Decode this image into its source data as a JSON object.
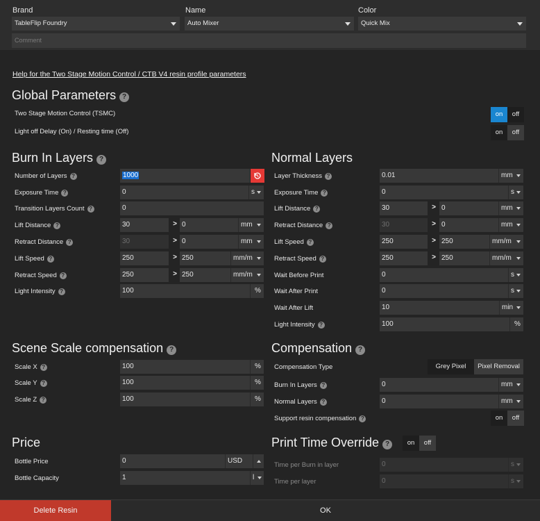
{
  "header": {
    "brand_label": "Brand",
    "brand_value": "TableFlip Foundry",
    "name_label": "Name",
    "name_value": "Auto Mixer",
    "color_label": "Color",
    "color_value": "Quick Mix",
    "comment_placeholder": "Comment"
  },
  "help_link": "Help for the Two Stage Motion Control / CTB V4 resin profile parameters",
  "global": {
    "title": "Global Parameters",
    "tsmc_label": "Two Stage Motion Control (TSMC)",
    "light_off_label": "Light off Delay (On) / Resting time (Off)",
    "on": "on",
    "off": "off"
  },
  "burn_in": {
    "title": "Burn In Layers",
    "number_of_layers_label": "Number of Layers",
    "number_of_layers_value": "1000",
    "exposure_time_label": "Exposure Time",
    "exposure_time_value": "0",
    "exposure_time_unit": "s",
    "transition_layers_label": "Transition Layers Count",
    "transition_layers_value": "0",
    "lift_distance_label": "Lift Distance",
    "lift_distance_value1": "30",
    "lift_distance_value2": "0",
    "lift_distance_unit": "mm",
    "retract_distance_label": "Retract Distance",
    "retract_distance_value1": "30",
    "retract_distance_value2": "0",
    "retract_distance_unit": "mm",
    "lift_speed_label": "Lift Speed",
    "lift_speed_value1": "250",
    "lift_speed_value2": "250",
    "lift_speed_unit": "mm/m",
    "retract_speed_label": "Retract Speed",
    "retract_speed_value1": "250",
    "retract_speed_value2": "250",
    "retract_speed_unit": "mm/m",
    "light_intensity_label": "Light Intensity",
    "light_intensity_value": "100",
    "light_intensity_unit": "%"
  },
  "normal": {
    "title": "Normal Layers",
    "layer_thickness_label": "Layer Thickness",
    "layer_thickness_value": "0.01",
    "layer_thickness_unit": "mm",
    "exposure_time_label": "Exposure Time",
    "exposure_time_value": "0",
    "exposure_time_unit": "s",
    "lift_distance_label": "Lift Distance",
    "lift_distance_value1": "30",
    "lift_distance_value2": "0",
    "lift_distance_unit": "mm",
    "retract_distance_label": "Retract Distance",
    "retract_distance_value1": "30",
    "retract_distance_value2": "0",
    "retract_distance_unit": "mm",
    "lift_speed_label": "Lift Speed",
    "lift_speed_value1": "250",
    "lift_speed_value2": "250",
    "lift_speed_unit": "mm/m",
    "retract_speed_label": "Retract Speed",
    "retract_speed_value1": "250",
    "retract_speed_value2": "250",
    "retract_speed_unit": "mm/m",
    "wait_before_print_label": "Wait Before Print",
    "wait_before_print_value": "0",
    "wait_before_print_unit": "s",
    "wait_after_print_label": "Wait After Print",
    "wait_after_print_value": "0",
    "wait_after_print_unit": "s",
    "wait_after_lift_label": "Wait After Lift",
    "wait_after_lift_value": "10",
    "wait_after_lift_unit": "min",
    "light_intensity_label": "Light Intensity",
    "light_intensity_value": "100",
    "light_intensity_unit": "%"
  },
  "scene": {
    "title": "Scene Scale compensation",
    "scale_x_label": "Scale X",
    "scale_x_value": "100",
    "scale_y_label": "Scale Y",
    "scale_y_value": "100",
    "scale_z_label": "Scale Z",
    "scale_z_value": "100",
    "unit": "%"
  },
  "compensation": {
    "title": "Compensation",
    "type_label": "Compensation Type",
    "grey_pixel": "Grey Pixel",
    "pixel_removal": "Pixel Removal",
    "burn_in_label": "Burn In Layers",
    "burn_in_value": "0",
    "burn_in_unit": "mm",
    "normal_label": "Normal Layers",
    "normal_value": "0",
    "normal_unit": "mm",
    "support_label": "Support resin compensation",
    "on": "on",
    "off": "off"
  },
  "price": {
    "title": "Price",
    "bottle_price_label": "Bottle Price",
    "bottle_price_value": "0",
    "bottle_price_currency": "USD",
    "bottle_capacity_label": "Bottle Capacity",
    "bottle_capacity_value": "1",
    "bottle_capacity_unit": "l"
  },
  "print_time": {
    "title": "Print Time Override",
    "on": "on",
    "off": "off",
    "burn_in_label": "Time per Burn in layer",
    "burn_in_value": "0",
    "burn_in_unit": "s",
    "layer_label": "Time per layer",
    "layer_value": "0",
    "layer_unit": "s"
  },
  "footer": {
    "delete_label": "Delete Resin",
    "ok_label": "OK"
  },
  "colors": {
    "accent_blue": "#1a86d0",
    "delete_red": "#c0392b",
    "reset_red": "#e53935"
  }
}
